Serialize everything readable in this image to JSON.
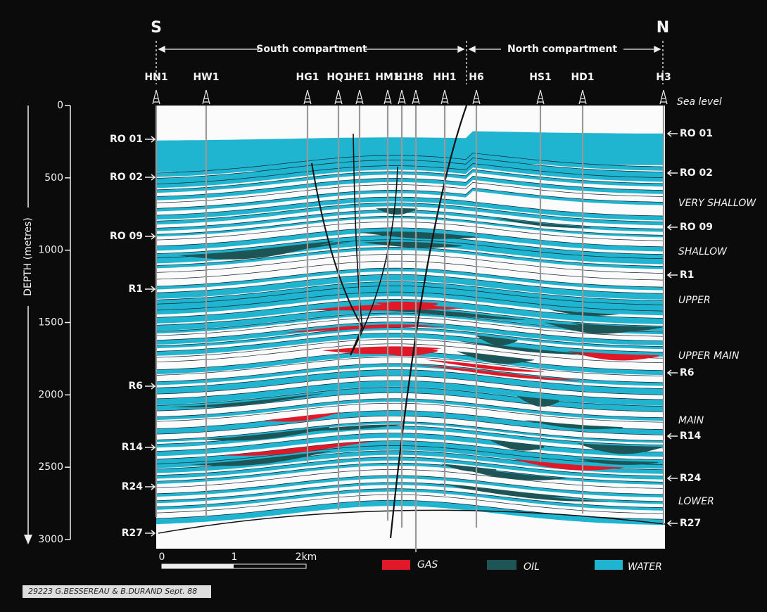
{
  "header": {
    "south": "S",
    "north": "N",
    "south_compartment": "South compartment",
    "north_compartment": "North compartment"
  },
  "wells": [
    "HN1",
    "HW1",
    "HG1",
    "HQ1",
    "HE1",
    "HM1",
    "H1",
    "H8",
    "HH1",
    "H6",
    "HS1",
    "HD1",
    "H3"
  ],
  "sea_level": "Sea level",
  "depth_axis": {
    "title": "DEPTH (metres)",
    "ticks": [
      0,
      500,
      1000,
      1500,
      2000,
      2500,
      3000
    ]
  },
  "horizons_left": [
    "RO 01",
    "RO 02",
    "RO 09",
    "R1",
    "R6",
    "R14",
    "R24",
    "R27"
  ],
  "horizons_right": [
    "RO 01",
    "RO 02",
    "RO 09",
    "R1",
    "R6",
    "R14",
    "R24",
    "R27"
  ],
  "zones": [
    "VERY SHALLOW",
    "SHALLOW",
    "UPPER",
    "UPPER MAIN",
    "MAIN",
    "LOWER"
  ],
  "scale": [
    "0",
    "1",
    "2km"
  ],
  "legend": [
    "GAS",
    "OIL",
    "WATER"
  ],
  "credit": "29223 G.BESSEREAU & B.DURAND Sept. 88"
}
